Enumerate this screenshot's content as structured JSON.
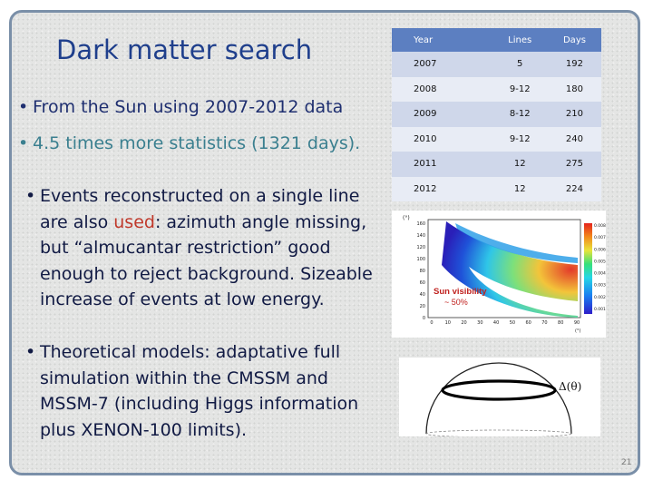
{
  "slide": {
    "title": "Dark matter search",
    "bullets": {
      "b1": "From the Sun using 2007-2012 data",
      "b2": "4.5 times more statistics (1321 days).",
      "b3_pre": "Events reconstructed on a single line are also ",
      "b3_red": "used",
      "b3_post": ": azimuth angle missing, but “almucantar restriction” good enough to reject background. Sizeable increase of events at low energy.",
      "b4": "Theoretical models: adaptative full simulation within the CMSSM and MSSM-7 (including Higgs information plus XENON-100 limits)."
    },
    "bullet_glyph": "•",
    "page_number": "21"
  },
  "table": {
    "headers": [
      "Year",
      "Lines",
      "Days"
    ],
    "rows": [
      [
        "2007",
        "5",
        "192"
      ],
      [
        "2008",
        "9-12",
        "180"
      ],
      [
        "2009",
        "8-12",
        "210"
      ],
      [
        "2010",
        "9-12",
        "240"
      ],
      [
        "2011",
        "12",
        "275"
      ],
      [
        "2012",
        "12",
        "224"
      ]
    ]
  },
  "plot": {
    "y_axis_label": "(°)",
    "y_ticks": [
      "160",
      "140",
      "120",
      "100",
      "80",
      "60",
      "40",
      "20",
      "0"
    ],
    "x_ticks": [
      "0",
      "10",
      "20",
      "30",
      "40",
      "50",
      "60",
      "70",
      "80",
      "90"
    ],
    "x_axis_label": "(°)",
    "colorbar_ticks": [
      "0.008",
      "0.007",
      "0.006",
      "0.005",
      "0.004",
      "0.003",
      "0.002",
      "0.001"
    ],
    "annotation_line1": "Sun visibility",
    "annotation_line2": "~ 50%"
  },
  "dome": {
    "label": "Δ(θ)"
  },
  "colors": {
    "title": "#1f3f8c",
    "table_header": "#5c7fc1",
    "highlight_red": "#c0392b"
  }
}
